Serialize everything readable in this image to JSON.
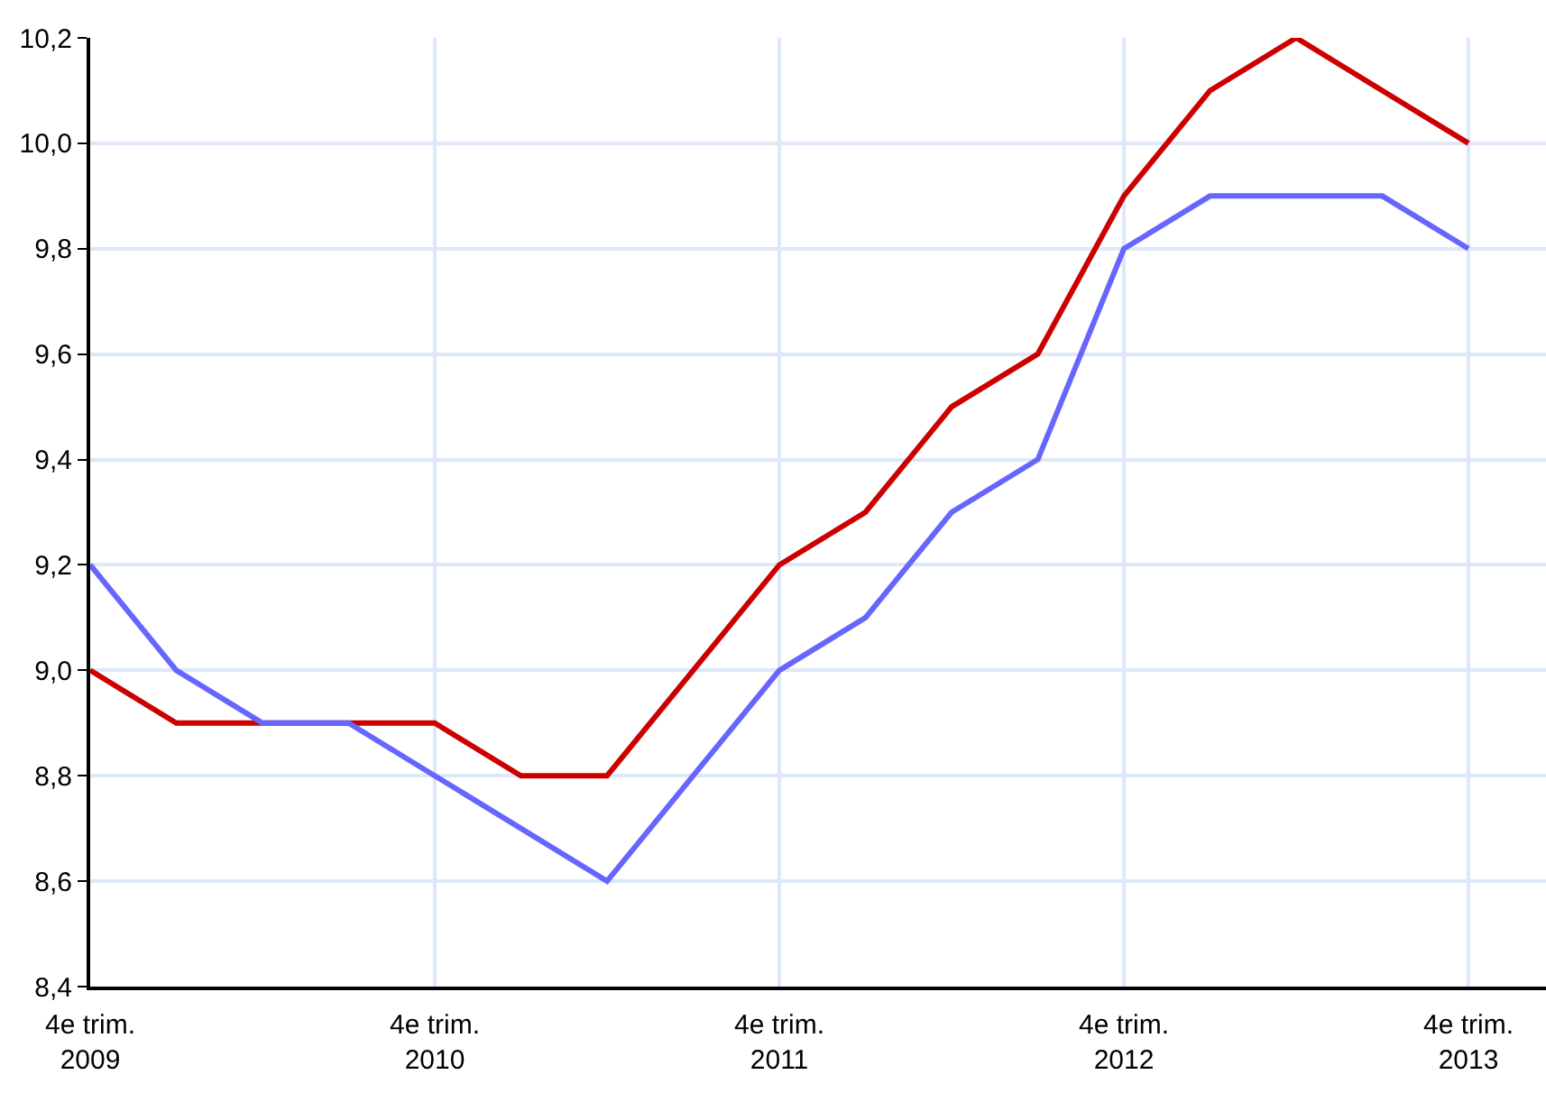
{
  "chart_data": {
    "type": "line",
    "categories": [
      "4e trim.\n2009",
      null,
      null,
      null,
      "4e trim.\n2010",
      null,
      null,
      null,
      "4e trim.\n2011",
      null,
      null,
      null,
      "4e trim.\n2012",
      null,
      null,
      null,
      "4e trim.\n2013"
    ],
    "series": [
      {
        "color": "#cc0000",
        "values": [
          9.0,
          8.9,
          8.9,
          8.9,
          8.9,
          8.8,
          8.8,
          9.0,
          9.2,
          9.3,
          9.5,
          9.6,
          9.9,
          10.1,
          10.2,
          10.1,
          10.0
        ]
      },
      {
        "color": "#6666ff",
        "values": [
          9.2,
          9.0,
          8.9,
          8.9,
          8.8,
          8.7,
          8.6,
          8.8,
          9.0,
          9.1,
          9.3,
          9.4,
          9.8,
          9.9,
          9.9,
          9.9,
          9.8
        ]
      }
    ],
    "ylim": [
      8.4,
      10.2
    ],
    "yticks": [
      {
        "value": 8.4,
        "label": "8,4"
      },
      {
        "value": 8.6,
        "label": "8,6"
      },
      {
        "value": 8.8,
        "label": "8,8"
      },
      {
        "value": 9.0,
        "label": "9,0"
      },
      {
        "value": 9.2,
        "label": "9,2"
      },
      {
        "value": 9.4,
        "label": "9,4"
      },
      {
        "value": 9.6,
        "label": "9,6"
      },
      {
        "value": 9.8,
        "label": "9,8"
      },
      {
        "value": 10.0,
        "label": "10,0"
      },
      {
        "value": 10.2,
        "label": "10,2"
      }
    ],
    "grid": true,
    "marker": "none",
    "line_style": "solid"
  }
}
